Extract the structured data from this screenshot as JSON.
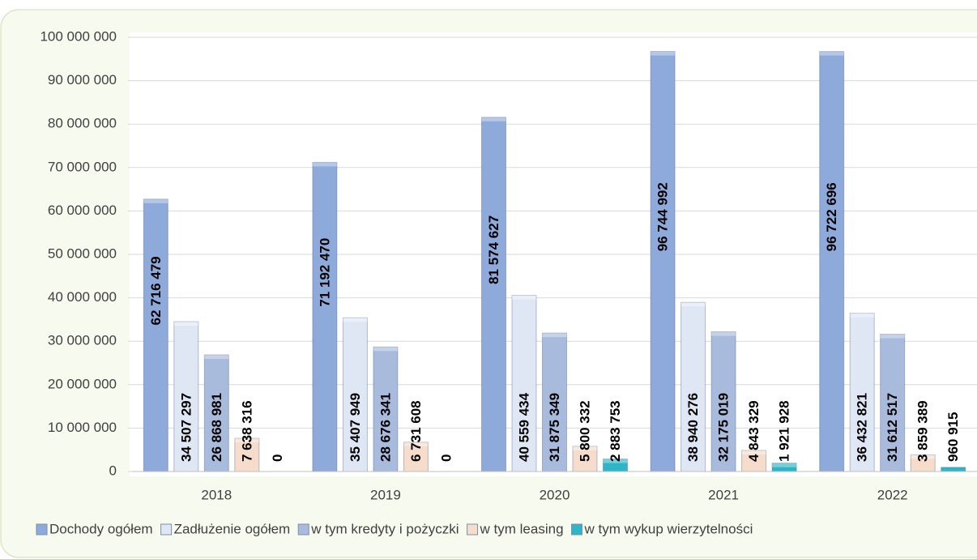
{
  "chart_data": {
    "type": "bar",
    "categories": [
      "2018",
      "2019",
      "2020",
      "2021",
      "2022"
    ],
    "series": [
      {
        "name": "Dochody ogółem",
        "color": "#8eaadb",
        "values": [
          62716479,
          71192470,
          81574627,
          96744992,
          96722696
        ],
        "value_labels": [
          "62 716 479",
          "71 192 470",
          "81 574 627",
          "96 744 992",
          "96 722 696"
        ]
      },
      {
        "name": "Zadłużenie ogółem",
        "color": "#dfe7f4",
        "values": [
          34507297,
          35407949,
          40559434,
          38940276,
          36432821
        ],
        "value_labels": [
          "34 507 297",
          "35 407 949",
          "40 559 434",
          "38 940 276",
          "36 432 821"
        ]
      },
      {
        "name": "w tym kredyty i pożyczki",
        "color": "#a8bbdc",
        "values": [
          26868981,
          28676341,
          31875349,
          32175019,
          31612517
        ],
        "value_labels": [
          "26 868 981",
          "28 676 341",
          "31 875 349",
          "32 175 019",
          "31 612 517"
        ]
      },
      {
        "name": "w tym leasing",
        "color": "#f6dccb",
        "values": [
          7638316,
          6731608,
          5800332,
          4843329,
          3859389
        ],
        "value_labels": [
          "7 638 316",
          "6 731 608",
          "5 800 332",
          "4 843 329",
          "3 859 389"
        ]
      },
      {
        "name": "w tym wykup wierzytelności",
        "color": "#2fb5c8",
        "values": [
          0,
          0,
          2883753,
          1921928,
          960915
        ],
        "value_labels": [
          "0",
          "0",
          "2 883 753",
          "1 921 928",
          "960 915"
        ]
      }
    ],
    "ylim": [
      0,
      100000000
    ],
    "yticks": [
      0,
      {
        "value": 10000000,
        "label": "10 000 000"
      },
      {
        "value": 20000000,
        "label": "20 000 000"
      },
      {
        "value": 30000000,
        "label": "30 000 000"
      },
      {
        "value": 40000000,
        "label": "40 000 000"
      },
      {
        "value": 50000000,
        "label": "50 000 000"
      },
      {
        "value": 60000000,
        "label": "60 000 000"
      },
      {
        "value": 70000000,
        "label": "70 000 000"
      },
      {
        "value": 80000000,
        "label": "80 000 000"
      },
      {
        "value": 90000000,
        "label": "90 000 000"
      },
      {
        "value": 100000000,
        "label": "100 000 000"
      }
    ],
    "grid": true,
    "legend": "bottom"
  }
}
